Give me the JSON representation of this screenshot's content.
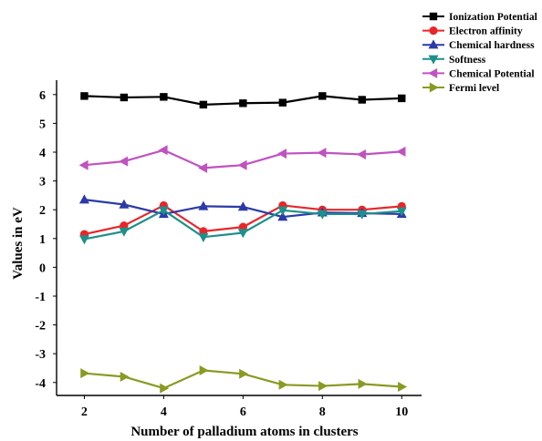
{
  "chart_data": {
    "type": "line",
    "title": "",
    "xlabel": "Number of palladium atoms in clusters",
    "ylabel": "Values in eV",
    "x": [
      2,
      3,
      4,
      5,
      6,
      7,
      8,
      9,
      10
    ],
    "xticks": [
      "2",
      "4",
      "6",
      "8",
      "10"
    ],
    "yticks": [
      "6",
      "5",
      "4",
      "3",
      "2",
      "1",
      "0",
      "-1",
      "-2",
      "-3",
      "-4"
    ],
    "xlim": [
      1.3,
      10.5
    ],
    "ylim": [
      -4.45,
      6.5
    ],
    "grid": false,
    "legend_position": "top-right",
    "series": [
      {
        "name": "Ionization Potential",
        "color": "#000000",
        "marker": "square",
        "values": [
          5.95,
          5.9,
          5.92,
          5.65,
          5.7,
          5.72,
          5.95,
          5.82,
          5.87
        ]
      },
      {
        "name": "Electron affinity",
        "color": "#e8262a",
        "marker": "circle",
        "values": [
          1.15,
          1.45,
          2.15,
          1.25,
          1.4,
          2.15,
          2.0,
          2.0,
          2.12
        ]
      },
      {
        "name": "Chemical hardness",
        "color": "#2b3aa8",
        "marker": "triangle-up",
        "values": [
          2.35,
          2.18,
          1.85,
          2.12,
          2.1,
          1.75,
          1.9,
          1.88,
          1.85
        ]
      },
      {
        "name": "Softness",
        "color": "#1f8f8a",
        "marker": "triangle-down",
        "values": [
          0.98,
          1.25,
          1.98,
          1.05,
          1.2,
          1.98,
          1.85,
          1.85,
          1.95
        ]
      },
      {
        "name": "Chemical Potential",
        "color": "#c052c0",
        "marker": "triangle-left",
        "values": [
          3.55,
          3.68,
          4.07,
          3.45,
          3.55,
          3.95,
          3.98,
          3.92,
          4.02
        ]
      },
      {
        "name": "Fermi level",
        "color": "#8a9a22",
        "marker": "triangle-right",
        "values": [
          -3.68,
          -3.8,
          -4.2,
          -3.58,
          -3.7,
          -4.08,
          -4.12,
          -4.05,
          -4.15
        ]
      }
    ]
  }
}
